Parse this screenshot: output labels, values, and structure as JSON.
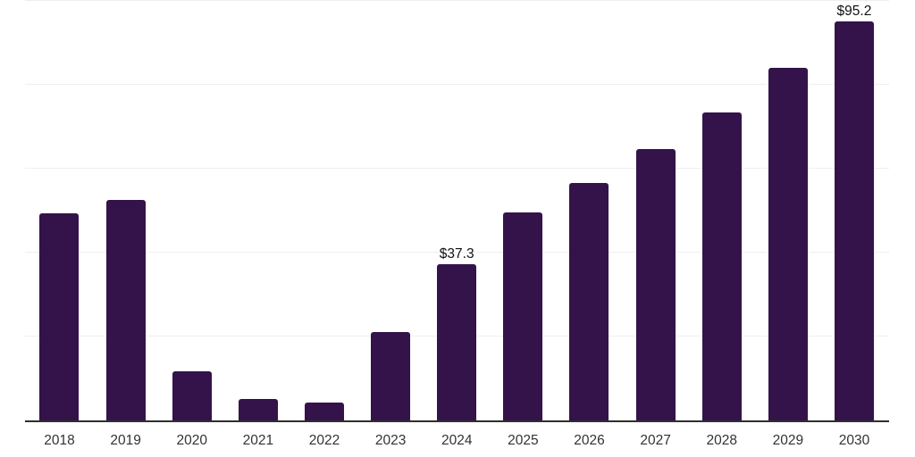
{
  "chart": {
    "background_color": "#ffffff"
  },
  "chart_data": {
    "type": "bar",
    "title": "",
    "xlabel": "",
    "ylabel": "",
    "categories": [
      "2018",
      "2019",
      "2020",
      "2021",
      "2022",
      "2023",
      "2024",
      "2025",
      "2026",
      "2027",
      "2028",
      "2029",
      "2030"
    ],
    "values": [
      49.3,
      52.6,
      11.6,
      5.2,
      4.2,
      21.0,
      37.3,
      49.6,
      56.5,
      64.6,
      73.5,
      84.0,
      95.2
    ],
    "value_labels": {
      "2024": "$37.3",
      "2030": "$95.2"
    },
    "ylim": [
      0,
      100
    ],
    "gridline_values": [
      20,
      40,
      60,
      80,
      100
    ],
    "grid": "horizontal",
    "legend": "none",
    "bar_color": "#331349",
    "gridline_color": "#efefef",
    "axis_line_color": "#2e2e2e",
    "tick_label_color": "#333333",
    "value_label_color": "#111111"
  }
}
